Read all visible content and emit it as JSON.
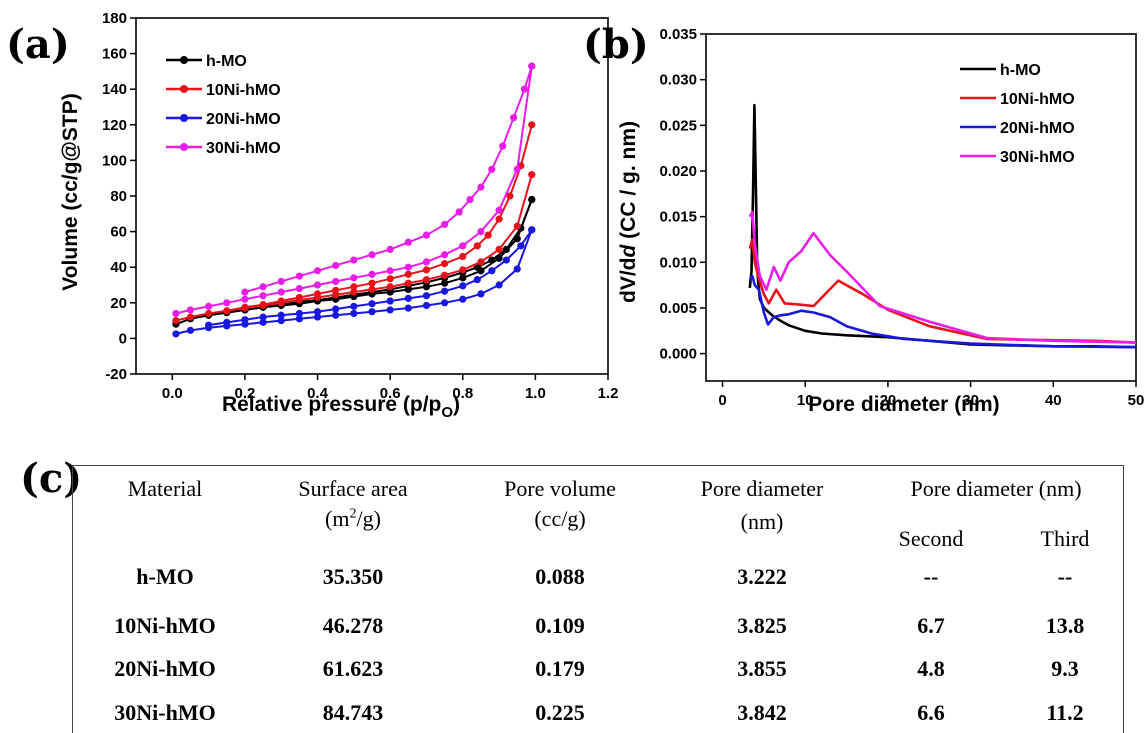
{
  "chart_data": [
    {
      "panel": "(a)",
      "type": "line",
      "xlabel": "Relative pressure (p/pO)",
      "ylabel": "Volume (cc/g@STP)",
      "xlim": [
        -0.1,
        1.2
      ],
      "ylim": [
        -20,
        180
      ],
      "xticks": [
        "0.0",
        "0.2",
        "0.4",
        "0.6",
        "0.8",
        "1.0",
        "1.2"
      ],
      "yticks": [
        "-20",
        "0",
        "20",
        "40",
        "60",
        "80",
        "100",
        "120",
        "140",
        "160",
        "180"
      ],
      "legend_position": "top-left",
      "series": [
        {
          "name": "h-MO",
          "color": "#000000",
          "adsorption": {
            "x": [
              0.01,
              0.05,
              0.1,
              0.15,
              0.2,
              0.25,
              0.3,
              0.35,
              0.4,
              0.45,
              0.5,
              0.55,
              0.6,
              0.65,
              0.7,
              0.75,
              0.8,
              0.85,
              0.9,
              0.95,
              0.99
            ],
            "y": [
              8,
              11,
              13,
              14.5,
              16,
              17.5,
              18.5,
              19.5,
              21,
              22,
              23.5,
              25,
              26,
              27.5,
              29,
              31,
              34,
              38,
              45,
              56,
              78
            ]
          },
          "desorption": {
            "x": [
              0.99,
              0.96,
              0.92,
              0.88,
              0.84,
              0.8,
              0.75,
              0.7,
              0.65,
              0.6,
              0.55,
              0.5,
              0.45,
              0.4,
              0.35,
              0.3,
              0.25,
              0.2,
              0.15,
              0.1
            ],
            "y": [
              78,
              62,
              50,
              44,
              40,
              37,
              34,
              31.5,
              29.5,
              27.5,
              26,
              24.5,
              23,
              21.5,
              20.5,
              19,
              17.5,
              16,
              14.5,
              13
            ]
          }
        },
        {
          "name": "10Ni-hMO",
          "color": "#e8121b",
          "adsorption": {
            "x": [
              0.01,
              0.05,
              0.1,
              0.15,
              0.2,
              0.25,
              0.3,
              0.35,
              0.4,
              0.45,
              0.5,
              0.55,
              0.6,
              0.65,
              0.7,
              0.75,
              0.8,
              0.85,
              0.9,
              0.95,
              0.99
            ],
            "y": [
              10,
              12,
              14,
              15.5,
              17,
              18.5,
              20,
              21.5,
              23,
              24.5,
              26,
              27.5,
              29,
              31,
              33,
              35.5,
              38.5,
              43,
              50,
              63,
              92
            ]
          },
          "desorption": {
            "x": [
              0.99,
              0.96,
              0.93,
              0.9,
              0.87,
              0.84,
              0.8,
              0.75,
              0.7,
              0.65,
              0.6,
              0.55,
              0.5,
              0.45,
              0.4,
              0.35,
              0.3,
              0.25,
              0.2,
              0.15
            ],
            "y": [
              120,
              97,
              80,
              67,
              58,
              52,
              46,
              42,
              38.5,
              36,
              33.5,
              31,
              29,
              27,
              25,
              23,
              21,
              19,
              17.5,
              15.5
            ]
          }
        },
        {
          "name": "20Ni-hMO",
          "color": "#1818e0",
          "adsorption": {
            "x": [
              0.01,
              0.05,
              0.1,
              0.15,
              0.2,
              0.25,
              0.3,
              0.35,
              0.4,
              0.45,
              0.5,
              0.55,
              0.6,
              0.65,
              0.7,
              0.75,
              0.8,
              0.85,
              0.9,
              0.95,
              0.99
            ],
            "y": [
              2.5,
              4.5,
              6,
              7,
              8,
              9,
              10,
              11,
              12,
              13,
              14,
              15,
              16,
              17,
              18.5,
              20,
              22,
              25,
              30,
              39,
              61
            ]
          },
          "desorption": {
            "x": [
              0.99,
              0.96,
              0.92,
              0.88,
              0.84,
              0.8,
              0.75,
              0.7,
              0.65,
              0.6,
              0.55,
              0.5,
              0.45,
              0.4,
              0.35,
              0.3,
              0.25,
              0.2,
              0.15,
              0.1
            ],
            "y": [
              61,
              52,
              44,
              38,
              33,
              29.5,
              26.5,
              24,
              22.5,
              21,
              19.5,
              18,
              16.5,
              15,
              14,
              13,
              12,
              10.5,
              9,
              7.5
            ]
          }
        },
        {
          "name": "30Ni-hMO",
          "color": "#e81ee8",
          "adsorption": {
            "x": [
              0.01,
              0.05,
              0.1,
              0.15,
              0.2,
              0.25,
              0.3,
              0.35,
              0.4,
              0.45,
              0.5,
              0.55,
              0.6,
              0.65,
              0.7,
              0.75,
              0.8,
              0.85,
              0.9,
              0.95,
              0.99
            ],
            "y": [
              14,
              16,
              18,
              20,
              22,
              24,
              26,
              28,
              30,
              32,
              34,
              36,
              38,
              40,
              43,
              47,
              52,
              60,
              72,
              95,
              153
            ]
          },
          "desorption": {
            "x": [
              0.99,
              0.97,
              0.94,
              0.91,
              0.88,
              0.85,
              0.82,
              0.79,
              0.75,
              0.7,
              0.65,
              0.6,
              0.55,
              0.5,
              0.45,
              0.4,
              0.35,
              0.3,
              0.25,
              0.2
            ],
            "y": [
              153,
              140,
              124,
              108,
              95,
              85,
              78,
              71,
              64,
              58,
              54,
              50,
              47,
              44,
              41,
              38,
              35,
              32,
              29,
              26
            ]
          }
        }
      ]
    },
    {
      "panel": "(b)",
      "type": "line",
      "xlabel": "Pore diameter (nm)",
      "ylabel": "dV/dd (CC / g. nm)",
      "xlim": [
        -2,
        50
      ],
      "ylim": [
        -0.003,
        0.035
      ],
      "xticks": [
        "0",
        "10",
        "20",
        "30",
        "40",
        "50"
      ],
      "yticks": [
        "0.000",
        "0.005",
        "0.010",
        "0.015",
        "0.020",
        "0.025",
        "0.030",
        "0.035"
      ],
      "legend_position": "top-right",
      "series": [
        {
          "name": "h-MO",
          "color": "#000000",
          "x": [
            3.3,
            3.5,
            3.7,
            3.85,
            4.0,
            4.2,
            4.5,
            5,
            6,
            7,
            8,
            10,
            12,
            15,
            20,
            25,
            30,
            35,
            40,
            45,
            50
          ],
          "y": [
            0.0072,
            0.009,
            0.018,
            0.0272,
            0.02,
            0.009,
            0.006,
            0.005,
            0.0042,
            0.0036,
            0.0031,
            0.0025,
            0.0022,
            0.002,
            0.0018,
            0.0014,
            0.001,
            0.0009,
            0.0008,
            0.0008,
            0.0007
          ]
        },
        {
          "name": "10Ni-hMO",
          "color": "#e8121b",
          "x": [
            3.3,
            3.6,
            3.9,
            4.3,
            5,
            5.6,
            6.5,
            7.5,
            9,
            11,
            14,
            17,
            20,
            25,
            32,
            38,
            45,
            50
          ],
          "y": [
            0.0115,
            0.0125,
            0.01,
            0.0085,
            0.0065,
            0.0055,
            0.007,
            0.0055,
            0.0054,
            0.0052,
            0.008,
            0.0065,
            0.0048,
            0.003,
            0.0016,
            0.0015,
            0.0014,
            0.0012
          ]
        },
        {
          "name": "20Ni-hMO",
          "color": "#1818e0",
          "x": [
            3.3,
            3.6,
            3.9,
            4.4,
            5,
            5.5,
            6.2,
            7,
            8,
            9.5,
            11,
            13,
            15,
            18,
            22,
            30,
            40,
            50
          ],
          "y": [
            0.008,
            0.0085,
            0.0075,
            0.007,
            0.0045,
            0.0032,
            0.004,
            0.0042,
            0.0043,
            0.0047,
            0.0045,
            0.004,
            0.003,
            0.0022,
            0.0016,
            0.0011,
            0.0008,
            0.0007
          ]
        },
        {
          "name": "30Ni-hMO",
          "color": "#e81ee8",
          "x": [
            3.3,
            3.6,
            3.9,
            4.5,
            5.3,
            6.2,
            7,
            8,
            9.5,
            11,
            13,
            15,
            19,
            25,
            32,
            40,
            50
          ],
          "y": [
            0.015,
            0.0155,
            0.012,
            0.0085,
            0.007,
            0.0095,
            0.008,
            0.01,
            0.0112,
            0.0132,
            0.0108,
            0.009,
            0.0052,
            0.0035,
            0.0017,
            0.0014,
            0.0012
          ]
        }
      ]
    },
    {
      "panel": "(c)",
      "type": "table",
      "headers": [
        "Material",
        "Surface area",
        "Pore volume",
        "Pore diameter",
        "Pore diameter (nm)"
      ],
      "header_units": [
        "",
        "(m2/g)",
        "(cc/g)",
        "(nm)",
        ""
      ],
      "subheaders": [
        "Second",
        "Third"
      ],
      "rows": [
        [
          "h-MO",
          "35.350",
          "0.088",
          "3.222",
          "--",
          "--"
        ],
        [
          "10Ni-hMO",
          "46.278",
          "0.109",
          "3.825",
          "6.7",
          "13.8"
        ],
        [
          "20Ni-hMO",
          "61.623",
          "0.179",
          "3.855",
          "4.8",
          "9.3"
        ],
        [
          "30Ni-hMO",
          "84.743",
          "0.225",
          "3.842",
          "6.6",
          "11.2"
        ]
      ]
    }
  ],
  "labels": {
    "panel_a": "(a)",
    "panel_b": "(b)",
    "panel_c": "(c)",
    "a_xlabel_main": "Relative pressure (p/p",
    "a_xlabel_sub": "O",
    "a_xlabel_end": ")",
    "a_ylabel": "Volume (cc/g@STP)",
    "b_xlabel": "Pore diameter (nm)",
    "b_ylabel_pre": "dV/d",
    "b_ylabel_it": "d",
    "b_ylabel_post": " (CC / g. nm)",
    "table": {
      "h_material": "Material",
      "h_surface": "Surface area",
      "h_surface_unit_pre": "(m",
      "h_surface_unit_sup": "2",
      "h_surface_unit_post": "/g)",
      "h_volume": "Pore volume",
      "h_volume_unit": "(cc/g)",
      "h_diam": "Pore diameter",
      "h_diam_unit": "(nm)",
      "h_diam2": "Pore diameter (nm)",
      "h_second": "Second",
      "h_third": "Third"
    }
  }
}
